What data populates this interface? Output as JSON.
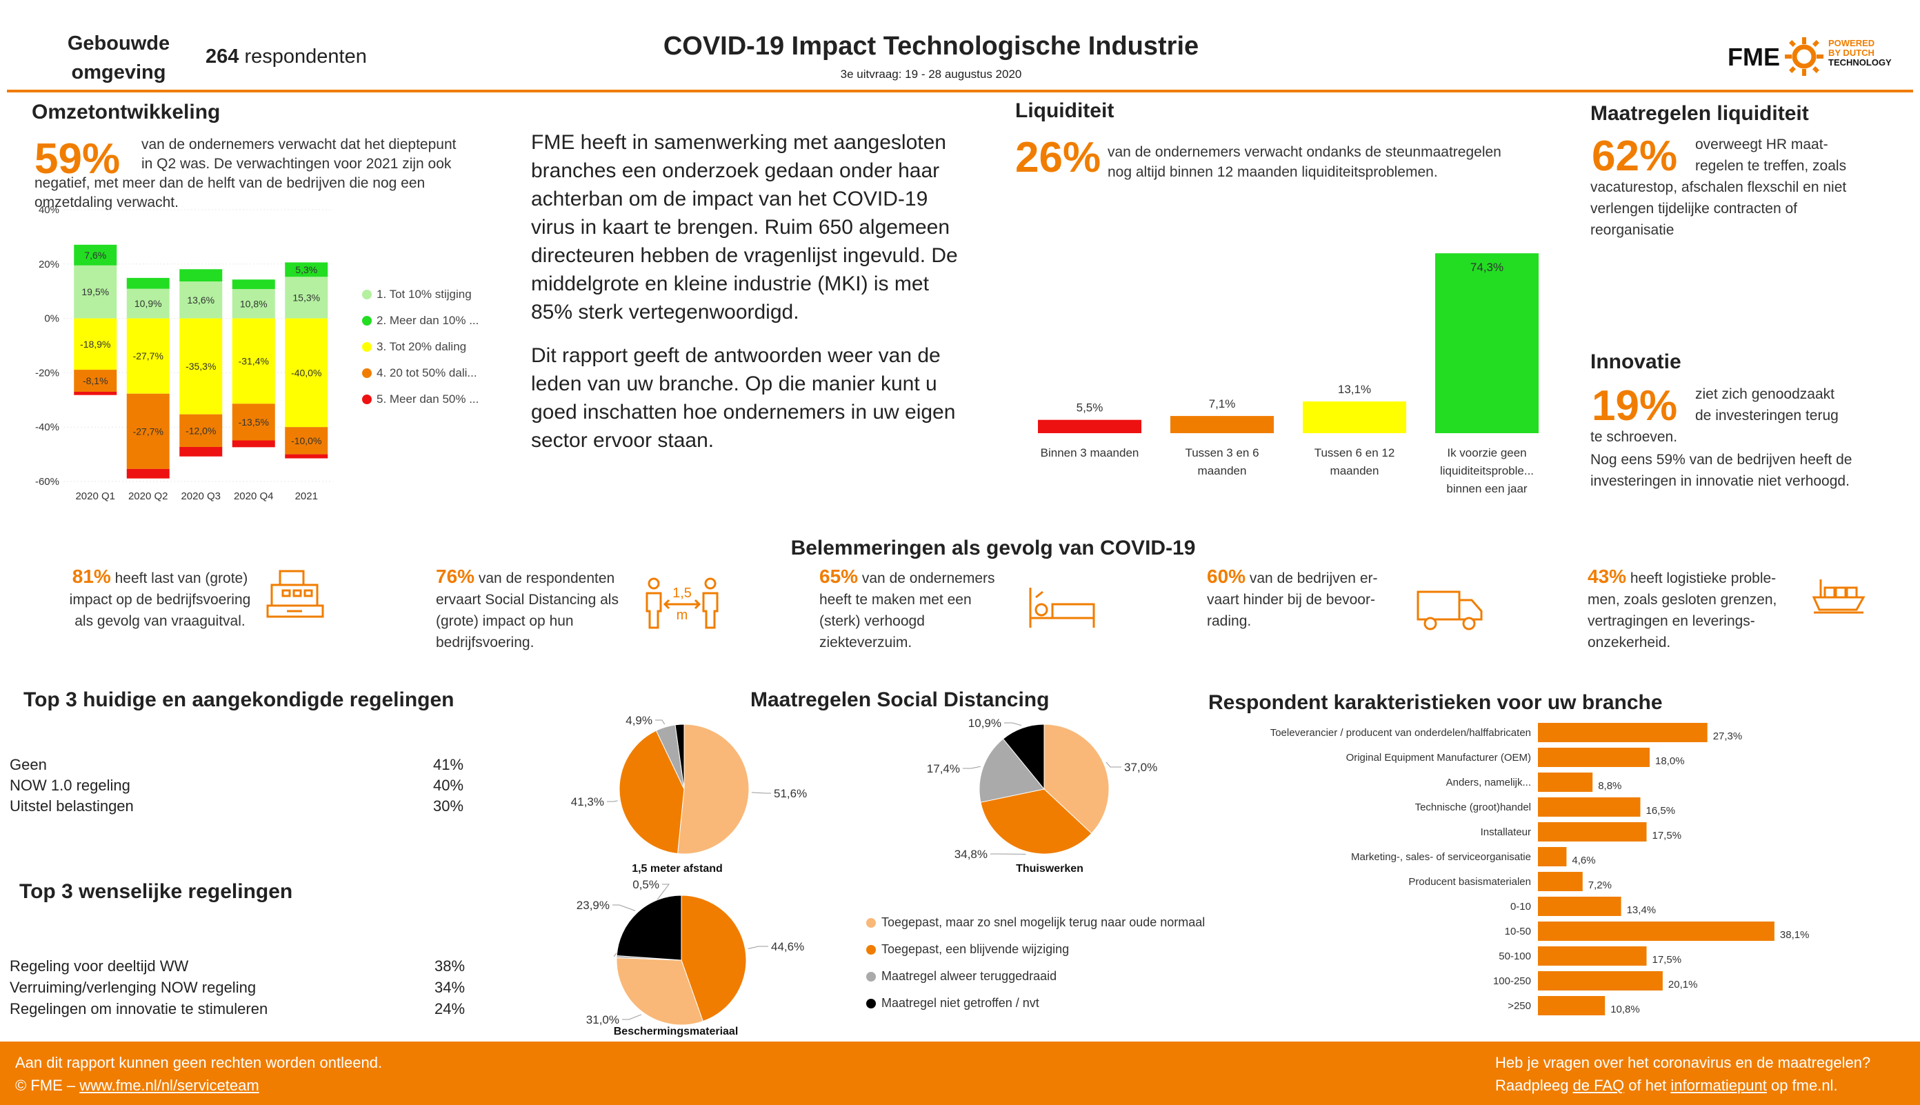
{
  "header": {
    "segment_line1": "Gebouwde",
    "segment_line2": "omgeving",
    "respondents_count": "264",
    "respondents_label": "respondenten",
    "title": "COVID-19 Impact Technologische Industrie",
    "subtitle": "3e uitvraag: 19 - 28 augustus 2020",
    "logo_text": "FME",
    "powered_line1": "POWERED",
    "powered_line2": "BY DUTCH",
    "powered_line3": "TECHNOLOGY"
  },
  "colors": {
    "accent": "#f07d00",
    "light_green": "#b4f0a0",
    "green": "#22dd22",
    "yellow": "#ffff00",
    "orange": "#f07d00",
    "red": "#ee1111",
    "pie_light": "#f9b878",
    "pie_gray": "#aaaaaa",
    "pie_black": "#000000"
  },
  "omzet": {
    "title": "Omzetontwikkeling",
    "pct": "59%",
    "text_1": "van de ondernemers verwacht dat het dieptepunt",
    "text_2": "in Q2 was. De verwachtingen voor 2021 zijn ook",
    "text_3": "negatief, met meer dan de helft van de bedrijven die nog een",
    "text_4": "omzetdaling verwacht."
  },
  "intro": {
    "p1": "FME heeft in samenwerking met aangesloten branches een onderzoek gedaan onder haar achterban om de impact van het COVID-19 virus in kaart te brengen. Ruim 650 algemeen directeuren hebben de vragenlijst ingevuld. De middelgrote en kleine industrie (MKI) is met 85% sterk vertegenwoordigd.",
    "p2": "Dit rapport geeft de antwoorden weer van de leden van uw branche. Op die manier kunt u goed inschatten hoe ondernemers in uw eigen sector ervoor staan."
  },
  "liquiditeit": {
    "title": "Liquiditeit",
    "pct": "26%",
    "text_1": "van de ondernemers verwacht ondanks de steunmaatregelen",
    "text_2": "nog altijd binnen 12 maanden liquiditeitsproblemen."
  },
  "maatregelen_liq": {
    "title": "Maatregelen liquiditeit",
    "pct": "62%",
    "text_1": "overweegt HR maat-",
    "text_2": "regelen te treffen, zoals",
    "text_3": "vacaturestop, afschalen flexschil en niet",
    "text_4": "verlengen tijdelijke contracten of",
    "text_5": "reorganisatie"
  },
  "innovatie": {
    "title": "Innovatie",
    "pct": "19%",
    "text_1": "ziet zich genoodzaakt",
    "text_2": "de investeringen terug",
    "text_3": "te schroeven.",
    "text_4": "Nog eens 59% van de bedrijven heeft de",
    "text_5": "investeringen in innovatie niet verhoogd."
  },
  "belemmeringen": {
    "title": "Belemmeringen als gevolg van COVID-19",
    "items": [
      {
        "pct": "81%",
        "l1": " heeft last van (grote)",
        "l2": "impact op de bedrijfsvoering",
        "l3": "als gevolg van vraaguitval.",
        "l4": "",
        "icon": "cash-register-icon"
      },
      {
        "pct": "76%",
        "l1": " van de respondenten",
        "l2": "ervaart Social Distancing als",
        "l3": "(grote) impact op hun",
        "l4": "bedrijfsvoering.",
        "icon": "social-distance-icon",
        "icon_text_1": "1,5",
        "icon_text_2": "m"
      },
      {
        "pct": "65%",
        "l1": " van de ondernemers",
        "l2": "heeft te maken met een",
        "l3": "(sterk) verhoogd",
        "l4": "ziekteverzuim.",
        "icon": "sick-bed-icon"
      },
      {
        "pct": "60%",
        "l1": " van de bedrijven er-",
        "l2": "vaart hinder bij de bevoor-",
        "l3": "rading.",
        "l4": "",
        "icon": "truck-icon"
      },
      {
        "pct": "43%",
        "l1": " heeft logistieke proble-",
        "l2": "men, zoals gesloten grenzen,",
        "l3": "vertragingen en leverings-",
        "l4": "onzekerheid.",
        "icon": "cargo-ship-icon"
      }
    ]
  },
  "top3_huidig": {
    "title": "Top 3 huidige en aangekondigde regelingen",
    "rows": [
      {
        "label": "Geen",
        "value": "41%"
      },
      {
        "label": "NOW 1.0 regeling",
        "value": "40%"
      },
      {
        "label": "Uitstel belastingen",
        "value": "30%"
      }
    ]
  },
  "top3_wens": {
    "title": "Top 3 wenselijke regelingen",
    "rows": [
      {
        "label": "Regeling voor deeltijd WW",
        "value": "38%"
      },
      {
        "label": "Verruiming/verlenging NOW regeling",
        "value": "34%"
      },
      {
        "label": "Regelingen om innovatie te stimuleren",
        "value": "24%"
      }
    ]
  },
  "social_distancing": {
    "title": "Maatregelen Social Distancing",
    "legend": [
      {
        "label": "Toegepast, maar zo snel mogelijk terug naar oude normaal",
        "color": "#f9b878"
      },
      {
        "label": "Toegepast, een blijvende wijziging",
        "color": "#f07d00"
      },
      {
        "label": "Maatregel alweer teruggedraaid",
        "color": "#aaaaaa"
      },
      {
        "label": "Maatregel niet getroffen / nvt",
        "color": "#000000"
      }
    ]
  },
  "respondent": {
    "title": "Respondent karakteristieken voor uw branche"
  },
  "footer": {
    "left_1": "Aan dit rapport kunnen geen rechten worden ontleend.",
    "left_2a": "© FME – ",
    "left_2_link": "www.fme.nl/nl/serviceteam",
    "right_1": "Heb je vragen over het coronavirus en de maatregelen?",
    "right_2a": "Raadpleeg ",
    "right_2_link1": "de FAQ",
    "right_2b": " of het ",
    "right_2_link2": "informatiepunt",
    "right_2c": " op fme.nl."
  },
  "chart_data": [
    {
      "id": "omzet",
      "type": "bar",
      "stacked": true,
      "categories": [
        "2020 Q1",
        "2020 Q2",
        "2020 Q3",
        "2020 Q4",
        "2021"
      ],
      "ylim": [
        -60,
        40
      ],
      "yticks": [
        -60,
        -40,
        -20,
        0,
        20,
        40
      ],
      "ytick_labels": [
        "-60%",
        "-40%",
        "-20%",
        "0%",
        "20%",
        "40%"
      ],
      "legend_position": "right",
      "series": [
        {
          "name": "1. Tot 10% stijging",
          "color": "#b4f0a0",
          "values": [
            19.5,
            10.9,
            13.6,
            10.8,
            15.3
          ],
          "labels": [
            "19,5%",
            "10,9%",
            "13,6%",
            "10,8%",
            "15,3%"
          ]
        },
        {
          "name": "2. Meer dan 10% ...",
          "color": "#22dd22",
          "values": [
            7.6,
            4.0,
            4.5,
            3.5,
            5.3
          ],
          "labels": [
            "7,6%",
            "",
            "",
            "",
            "5,3%"
          ]
        },
        {
          "name": "3. Tot 20% daling",
          "color": "#ffff00",
          "values": [
            -18.9,
            -27.7,
            -35.3,
            -31.4,
            -40.0
          ],
          "labels": [
            "-18,9%",
            "-27,7%",
            "-35,3%",
            "-31,4%",
            "-40,0%"
          ]
        },
        {
          "name": "4. 20 tot 50% dali...",
          "color": "#f07d00",
          "values": [
            -8.1,
            -27.7,
            -12.0,
            -13.5,
            -10.0
          ],
          "labels": [
            "-8,1%",
            "-27,7%",
            "-12,0%",
            "-13,5%",
            "-10,0%"
          ]
        },
        {
          "name": "5. Meer dan 50% ...",
          "color": "#ee1111",
          "values": [
            -1.2,
            -3.5,
            -3.5,
            -2.5,
            -1.5
          ],
          "labels": [
            "",
            "",
            "",
            "",
            ""
          ]
        }
      ]
    },
    {
      "id": "liquiditeit",
      "type": "bar",
      "categories": [
        "Binnen 3 maanden",
        "Tussen 3 en 6 maanden",
        "Tussen 6 en 12 maanden",
        "Ik voorzie geen liquiditeitsproble... binnen een jaar"
      ],
      "category_lines": [
        [
          "Binnen 3 maanden"
        ],
        [
          "Tussen 3 en 6",
          "maanden"
        ],
        [
          "Tussen 6 en 12",
          "maanden"
        ],
        [
          "Ik voorzie geen",
          "liquiditeitsproble...",
          "binnen een jaar"
        ]
      ],
      "values": [
        5.5,
        7.1,
        13.1,
        74.3
      ],
      "labels": [
        "5,5%",
        "7,1%",
        "13,1%",
        "74,3%"
      ],
      "colors": [
        "#ee1111",
        "#f07d00",
        "#ffff00",
        "#22dd22"
      ],
      "ylim": [
        0,
        80
      ]
    },
    {
      "id": "pie_15m",
      "type": "pie",
      "title": "1,5 meter afstand",
      "values": [
        51.6,
        41.3,
        4.9,
        2.2
      ],
      "labels": [
        "51,6%",
        "41,3%",
        "4,9%",
        ""
      ],
      "colors": [
        "#f9b878",
        "#f07d00",
        "#aaaaaa",
        "#000000"
      ]
    },
    {
      "id": "pie_thuis",
      "type": "pie",
      "title": "Thuiswerken",
      "values": [
        37.0,
        34.8,
        17.4,
        10.9
      ],
      "labels": [
        "37,0%",
        "34,8%",
        "17,4%",
        "10,9%"
      ],
      "colors": [
        "#f9b878",
        "#f07d00",
        "#aaaaaa",
        "#000000"
      ]
    },
    {
      "id": "pie_bescherm",
      "type": "pie",
      "title": "Beschermingsmateriaal",
      "values": [
        44.6,
        31.0,
        0.5,
        23.9
      ],
      "labels": [
        "44,6%",
        "31,0%",
        "0,5%",
        "23,9%"
      ],
      "colors": [
        "#f07d00",
        "#f9b878",
        "#aaaaaa",
        "#000000"
      ]
    },
    {
      "id": "respondent",
      "type": "bar",
      "orientation": "horizontal",
      "categories": [
        "Toeleverancier / producent van onderdelen/halffabricaten",
        "Original Equipment Manufacturer (OEM)",
        "Anders, namelijk...",
        "Technische (groot)handel",
        "Installateur",
        "Marketing-, sales- of serviceorganisatie",
        "Producent basismaterialen",
        "0-10",
        "10-50",
        "50-100",
        "100-250",
        ">250"
      ],
      "values": [
        27.3,
        18.0,
        8.8,
        16.5,
        17.5,
        4.6,
        7.2,
        13.4,
        38.1,
        17.5,
        20.1,
        10.8
      ],
      "labels": [
        "27,3%",
        "18,0%",
        "8,8%",
        "16,5%",
        "17,5%",
        "4,6%",
        "7,2%",
        "13,4%",
        "38,1%",
        "17,5%",
        "20,1%",
        "10,8%"
      ],
      "color": "#f07d00",
      "xlim": [
        0,
        40
      ]
    }
  ]
}
